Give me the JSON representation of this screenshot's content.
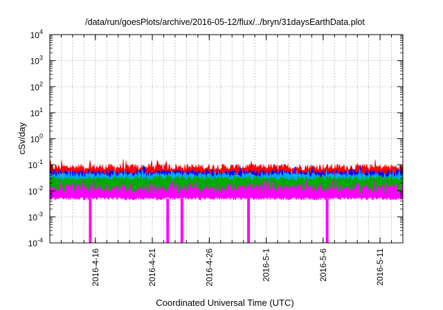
{
  "chart_data": {
    "type": "area",
    "title": "/data/run/goesPlots/archive/2016-05-12/flux/../bryn/31daysEarthData.plot",
    "xlabel": "Coordinated Universal Time (UTC)",
    "ylabel": "cSv/day",
    "yscale": "log",
    "ylim": [
      0.0001,
      10000
    ],
    "y_ticks": [
      {
        "value": 0.0001,
        "base": "10",
        "exp": "-4"
      },
      {
        "value": 0.001,
        "base": "10",
        "exp": "-3"
      },
      {
        "value": 0.01,
        "base": "10",
        "exp": "-2"
      },
      {
        "value": 0.1,
        "base": "10",
        "exp": "-1"
      },
      {
        "value": 1,
        "base": "10",
        "exp": "0"
      },
      {
        "value": 10,
        "base": "10",
        "exp": "1"
      },
      {
        "value": 100,
        "base": "10",
        "exp": "2"
      },
      {
        "value": 1000,
        "base": "10",
        "exp": "3"
      },
      {
        "value": 10000,
        "base": "10",
        "exp": "4"
      }
    ],
    "xlim": [
      "2016-04-12",
      "2016-05-13"
    ],
    "x_tick_labels": [
      "2016-4-16",
      "2016-4-21",
      "2016-4-26",
      "2016-5-1",
      "2016-5-6",
      "2016-5-11"
    ],
    "x_gridlines": [
      "2016-04-13",
      "2016-04-14",
      "2016-04-15",
      "2016-04-16",
      "2016-04-17",
      "2016-04-18",
      "2016-04-19",
      "2016-04-20",
      "2016-04-21",
      "2016-04-22",
      "2016-04-23",
      "2016-04-24",
      "2016-04-25",
      "2016-04-26",
      "2016-04-27",
      "2016-04-28",
      "2016-04-29",
      "2016-04-30",
      "2016-05-01",
      "2016-05-02",
      "2016-05-03",
      "2016-05-04",
      "2016-05-05",
      "2016-05-06",
      "2016-05-07",
      "2016-05-08",
      "2016-05-09",
      "2016-05-10",
      "2016-05-11",
      "2016-05-12"
    ],
    "grid": true,
    "series": [
      {
        "color": "#ff0000",
        "typical": 0.08,
        "min": 0.055,
        "max": 0.165
      },
      {
        "color": "#0000ff",
        "typical": 0.05,
        "min": 0.035,
        "max": 0.1
      },
      {
        "color": "#00aaff",
        "typical": 0.04,
        "min": 0.028,
        "max": 0.07
      },
      {
        "color": "#00aa00",
        "typical": 0.03,
        "min": 0.02,
        "max": 0.045
      },
      {
        "color": "#ff00ff",
        "typical": 0.012,
        "min": 0.005,
        "max": 0.03
      }
    ],
    "dropouts": [
      {
        "date": "2016-04-15.55",
        "value": 0.0001
      },
      {
        "date": "2016-04-22.35",
        "value": 0.0001
      },
      {
        "date": "2016-04-23.6",
        "value": 0.0001
      },
      {
        "date": "2016-04-29.45",
        "value": 0.0001
      },
      {
        "date": "2016-05-06.35",
        "value": 0.0001
      }
    ]
  }
}
